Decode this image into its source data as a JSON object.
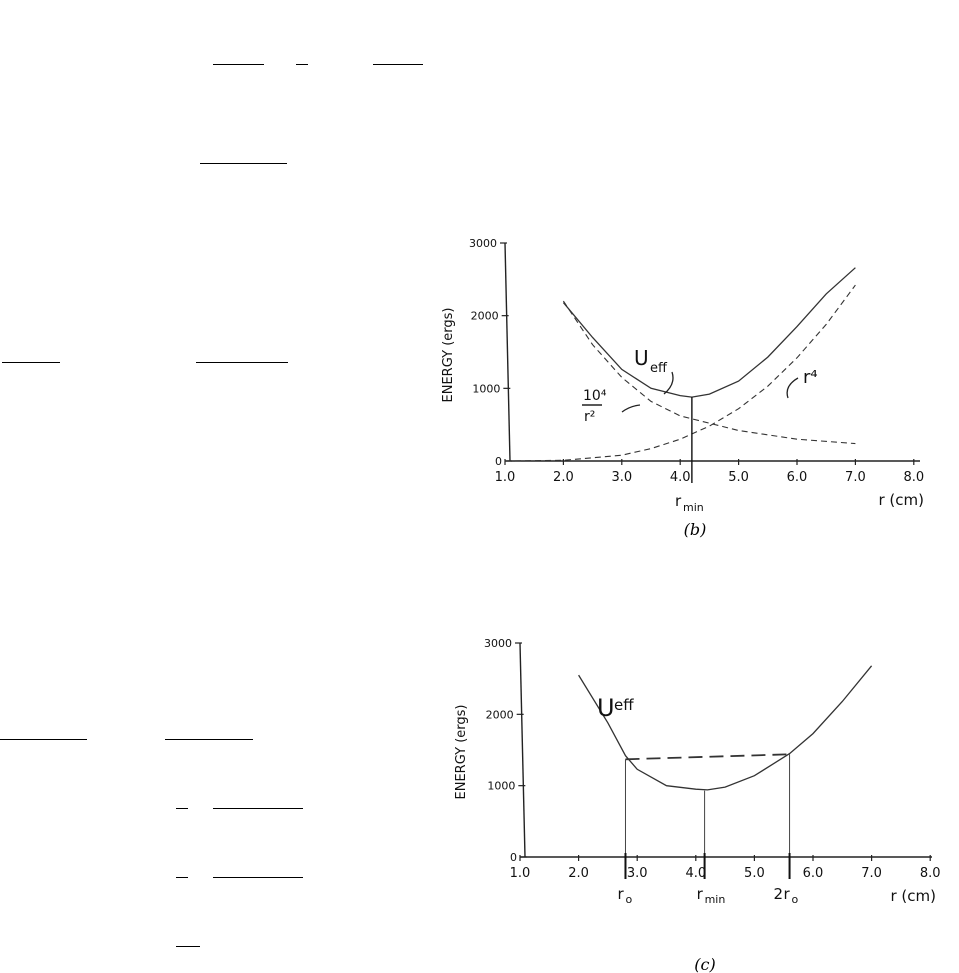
{
  "chart_data": [
    {
      "type": "line",
      "panel_label": "(b)",
      "ylabel": "ENERGY (ergs)",
      "xlabel": "r (cm)",
      "y_ticks": [
        "0",
        "1000",
        "2000",
        "3000"
      ],
      "x_ticks": [
        "1.0",
        "2.0",
        "3.0",
        "4.0",
        "5.0",
        "6.0",
        "7.0",
        "8.0"
      ],
      "xlim": [
        1.0,
        8.0
      ],
      "ylim": [
        0,
        3000
      ],
      "grid": false,
      "series": [
        {
          "name": "U_eff",
          "style": "solid",
          "x": [
            2.0,
            2.5,
            3.0,
            3.5,
            4.0,
            4.2,
            4.5,
            5.0,
            5.5,
            6.0,
            6.5,
            7.0
          ],
          "y": [
            2180,
            1700,
            1260,
            1000,
            900,
            880,
            920,
            1100,
            1430,
            1850,
            2300,
            2660
          ]
        },
        {
          "name": "10^4/r^2",
          "style": "dashed",
          "x": [
            2.0,
            2.5,
            3.0,
            3.5,
            4.0,
            5.0,
            6.0,
            7.0
          ],
          "y": [
            2200,
            1600,
            1150,
            820,
            620,
            420,
            300,
            240
          ]
        },
        {
          "name": "r^4",
          "style": "dashed",
          "x": [
            1.0,
            2.0,
            3.0,
            3.5,
            4.0,
            4.5,
            5.0,
            5.5,
            6.0,
            6.5,
            7.0
          ],
          "y": [
            0,
            10,
            80,
            170,
            300,
            480,
            720,
            1030,
            1420,
            1880,
            2420
          ]
        }
      ],
      "annotations": [
        {
          "text": "U",
          "sub": "eff",
          "target": "U_eff"
        },
        {
          "text": "10⁴",
          "den": "r²",
          "target": "10^4/r^2"
        },
        {
          "text": "r⁴",
          "target": "r^4"
        },
        {
          "text": "r",
          "sub": "min",
          "x": 4.2
        }
      ]
    },
    {
      "type": "line",
      "panel_label": "(c)",
      "ylabel": "ENERGY (ergs)",
      "xlabel": "r (cm)",
      "y_ticks": [
        "0",
        "1000",
        "2000",
        "3000"
      ],
      "x_ticks": [
        "1.0",
        "2.0",
        "3.0",
        "4.0",
        "5.0",
        "6.0",
        "7.0",
        "8.0"
      ],
      "xlim": [
        1.0,
        8.0
      ],
      "ylim": [
        0,
        3000
      ],
      "grid": false,
      "series": [
        {
          "name": "U_eff",
          "style": "solid",
          "x": [
            2.0,
            2.5,
            2.8,
            3.0,
            3.5,
            4.0,
            4.2,
            4.5,
            5.0,
            5.6,
            6.0,
            6.5,
            7.0
          ],
          "y": [
            2550,
            1880,
            1420,
            1230,
            1000,
            950,
            940,
            980,
            1140,
            1450,
            1730,
            2180,
            2680
          ]
        },
        {
          "name": "E",
          "style": "dashed",
          "x": [
            2.8,
            5.6
          ],
          "y": [
            1370,
            1440
          ]
        }
      ],
      "markers": [
        {
          "x": 2.8,
          "y": 1370,
          "label": "r",
          "sub": "o",
          "prefix": ""
        },
        {
          "x": 4.15,
          "y": 930,
          "label": "r",
          "sub": "min",
          "prefix": ""
        },
        {
          "x": 5.6,
          "y": 1440,
          "label": "r",
          "sub": "o",
          "prefix": "2"
        }
      ],
      "annotations": [
        {
          "text": "U",
          "sub": "eff",
          "target": "U_eff"
        }
      ]
    }
  ]
}
